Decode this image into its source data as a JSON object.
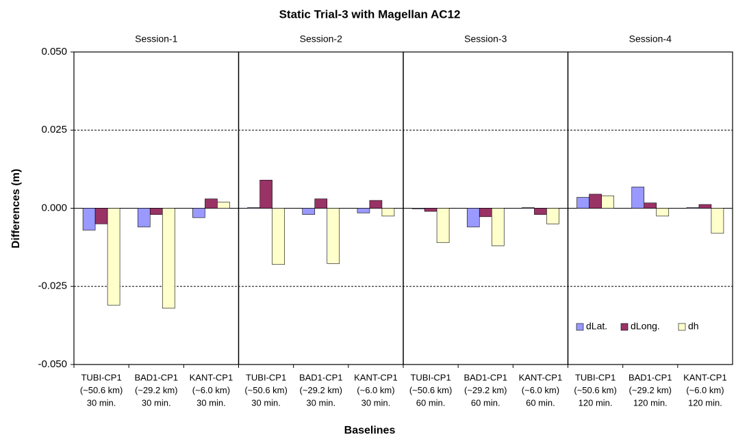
{
  "chart_data": {
    "type": "bar",
    "title": "Static Trial-3 with Magellan AC12",
    "x_label": "Baselines",
    "y_label": "Differences (m)",
    "sessions": [
      "Session-1",
      "Session-2",
      "Session-3",
      "Session-4"
    ],
    "categories": [
      [
        "TUBI-CP1",
        "(~50.6 km)",
        "30 min."
      ],
      [
        "BAD1-CP1",
        "(~29.2 km)",
        "30 min."
      ],
      [
        "KANT-CP1",
        "(~6.0 km)",
        "30 min."
      ],
      [
        "TUBI-CP1",
        "(~50.6 km)",
        "30 min."
      ],
      [
        "BAD1-CP1",
        "(~29.2 km)",
        "30 min."
      ],
      [
        "KANT-CP1",
        "(~6.0 km)",
        "30 min."
      ],
      [
        "TUBI-CP1",
        "(~50.6 km)",
        "60 min."
      ],
      [
        "BAD1-CP1",
        "(~29.2 km)",
        "60 min."
      ],
      [
        "KANT-CP1",
        "(~6.0 km)",
        "60 min."
      ],
      [
        "TUBI-CP1",
        "(~50.6 km)",
        "120 min."
      ],
      [
        "BAD1-CP1",
        "(~29.2 km)",
        "120 min."
      ],
      [
        "KANT-CP1",
        "(~6.0 km)",
        "120 min."
      ]
    ],
    "series": [
      {
        "name": "dLat.",
        "color": "#9999ff",
        "values": [
          -0.007,
          -0.006,
          -0.003,
          0.0002,
          -0.002,
          -0.0015,
          -0.0002,
          -0.006,
          0.0002,
          0.0035,
          0.0068,
          0.0002
        ]
      },
      {
        "name": "dLong.",
        "color": "#993366",
        "values": [
          -0.005,
          -0.002,
          0.003,
          0.009,
          0.003,
          0.0025,
          -0.001,
          -0.0027,
          -0.002,
          0.0045,
          0.0017,
          0.0012
        ]
      },
      {
        "name": "dh",
        "color": "#ffffcc",
        "values": [
          -0.031,
          -0.032,
          0.002,
          -0.018,
          -0.0177,
          -0.0025,
          -0.011,
          -0.012,
          -0.005,
          0.004,
          -0.0025,
          -0.008
        ]
      }
    ],
    "ylim": [
      -0.05,
      0.05
    ],
    "yticks": [
      {
        "value": -0.05,
        "label": "-0.050"
      },
      {
        "value": -0.025,
        "label": "-0.025"
      },
      {
        "value": 0,
        "label": "0.000"
      },
      {
        "value": 0.025,
        "label": "0.025"
      },
      {
        "value": 0.05,
        "label": "0.050"
      }
    ],
    "grid": true,
    "legend": "lower-right"
  }
}
